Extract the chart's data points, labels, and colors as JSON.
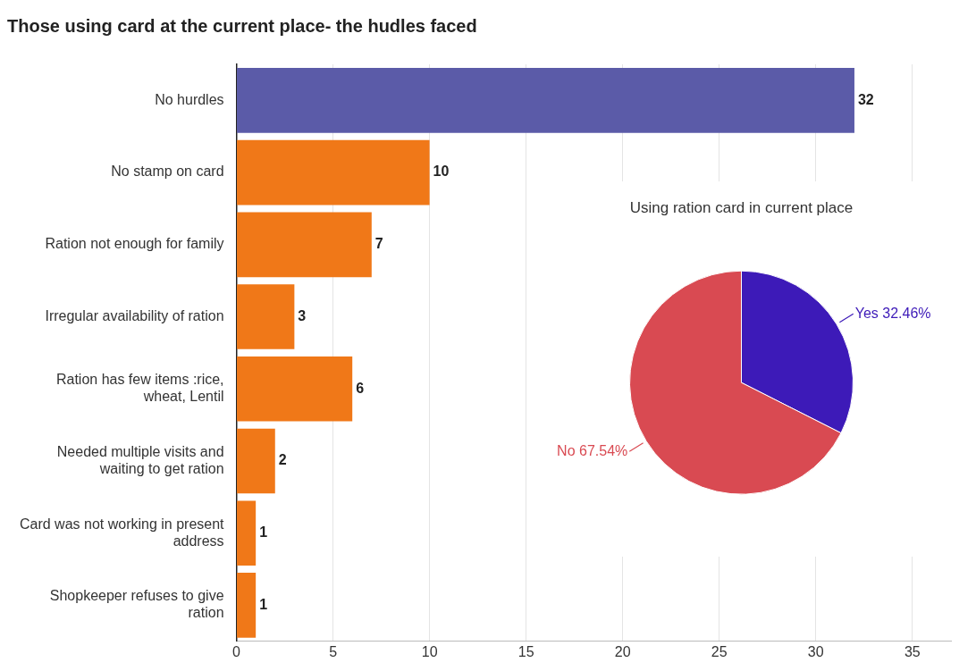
{
  "chart_data": [
    {
      "type": "bar",
      "orientation": "horizontal",
      "title": "Those using card at the current place- the hudles faced",
      "categories": [
        "No hurdles",
        "No stamp on card",
        "Ration not enough for family",
        "Irregular availability of ration",
        "Ration has few items :rice, wheat, Lentil",
        "Needed multiple visits and waiting to get ration",
        "Card was not working in present address",
        "Shopkeeper refuses to give ration"
      ],
      "values": [
        32,
        10,
        7,
        3,
        6,
        2,
        1,
        1
      ],
      "colors": [
        "#5b5ba8",
        "#f07818",
        "#f07818",
        "#f07818",
        "#f07818",
        "#f07818",
        "#f07818",
        "#f07818"
      ],
      "xlim": [
        0,
        37
      ],
      "xticks": [
        0,
        5,
        10,
        15,
        20,
        25,
        30,
        35
      ],
      "grid": "x",
      "legend": false,
      "data_labels": true
    },
    {
      "type": "pie",
      "title": "Using ration card in current place",
      "categories": [
        "Yes",
        "No"
      ],
      "values": [
        32.46,
        67.54
      ],
      "colors": [
        "#3d1ab8",
        "#d94a52"
      ],
      "value_labels": [
        "32.46%",
        "67.54%"
      ],
      "legend": false
    }
  ]
}
